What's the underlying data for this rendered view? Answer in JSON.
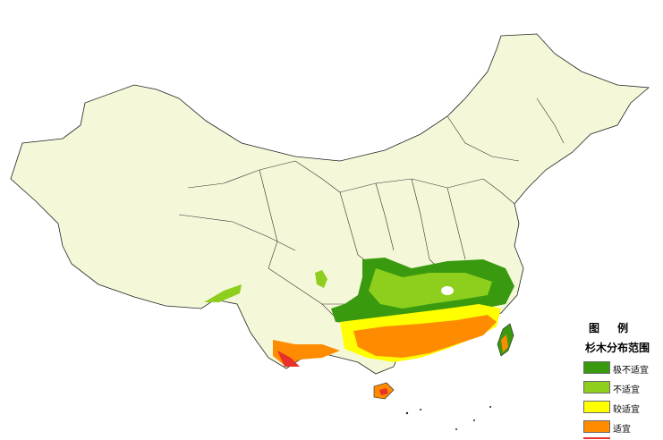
{
  "legend": {
    "title": "图 例",
    "subtitle": "杉木分布范围",
    "items": [
      {
        "label": "极不适宜",
        "color": "#3a9a0f"
      },
      {
        "label": "不适宜",
        "color": "#8ecf1e"
      },
      {
        "label": "较适宜",
        "color": "#ffff00"
      },
      {
        "label": "适宜",
        "color": "#ff8c00"
      }
    ],
    "boundary_color": "#e8312a"
  },
  "map": {
    "land_color": "#f4f8d8",
    "border_color": "#222222"
  }
}
